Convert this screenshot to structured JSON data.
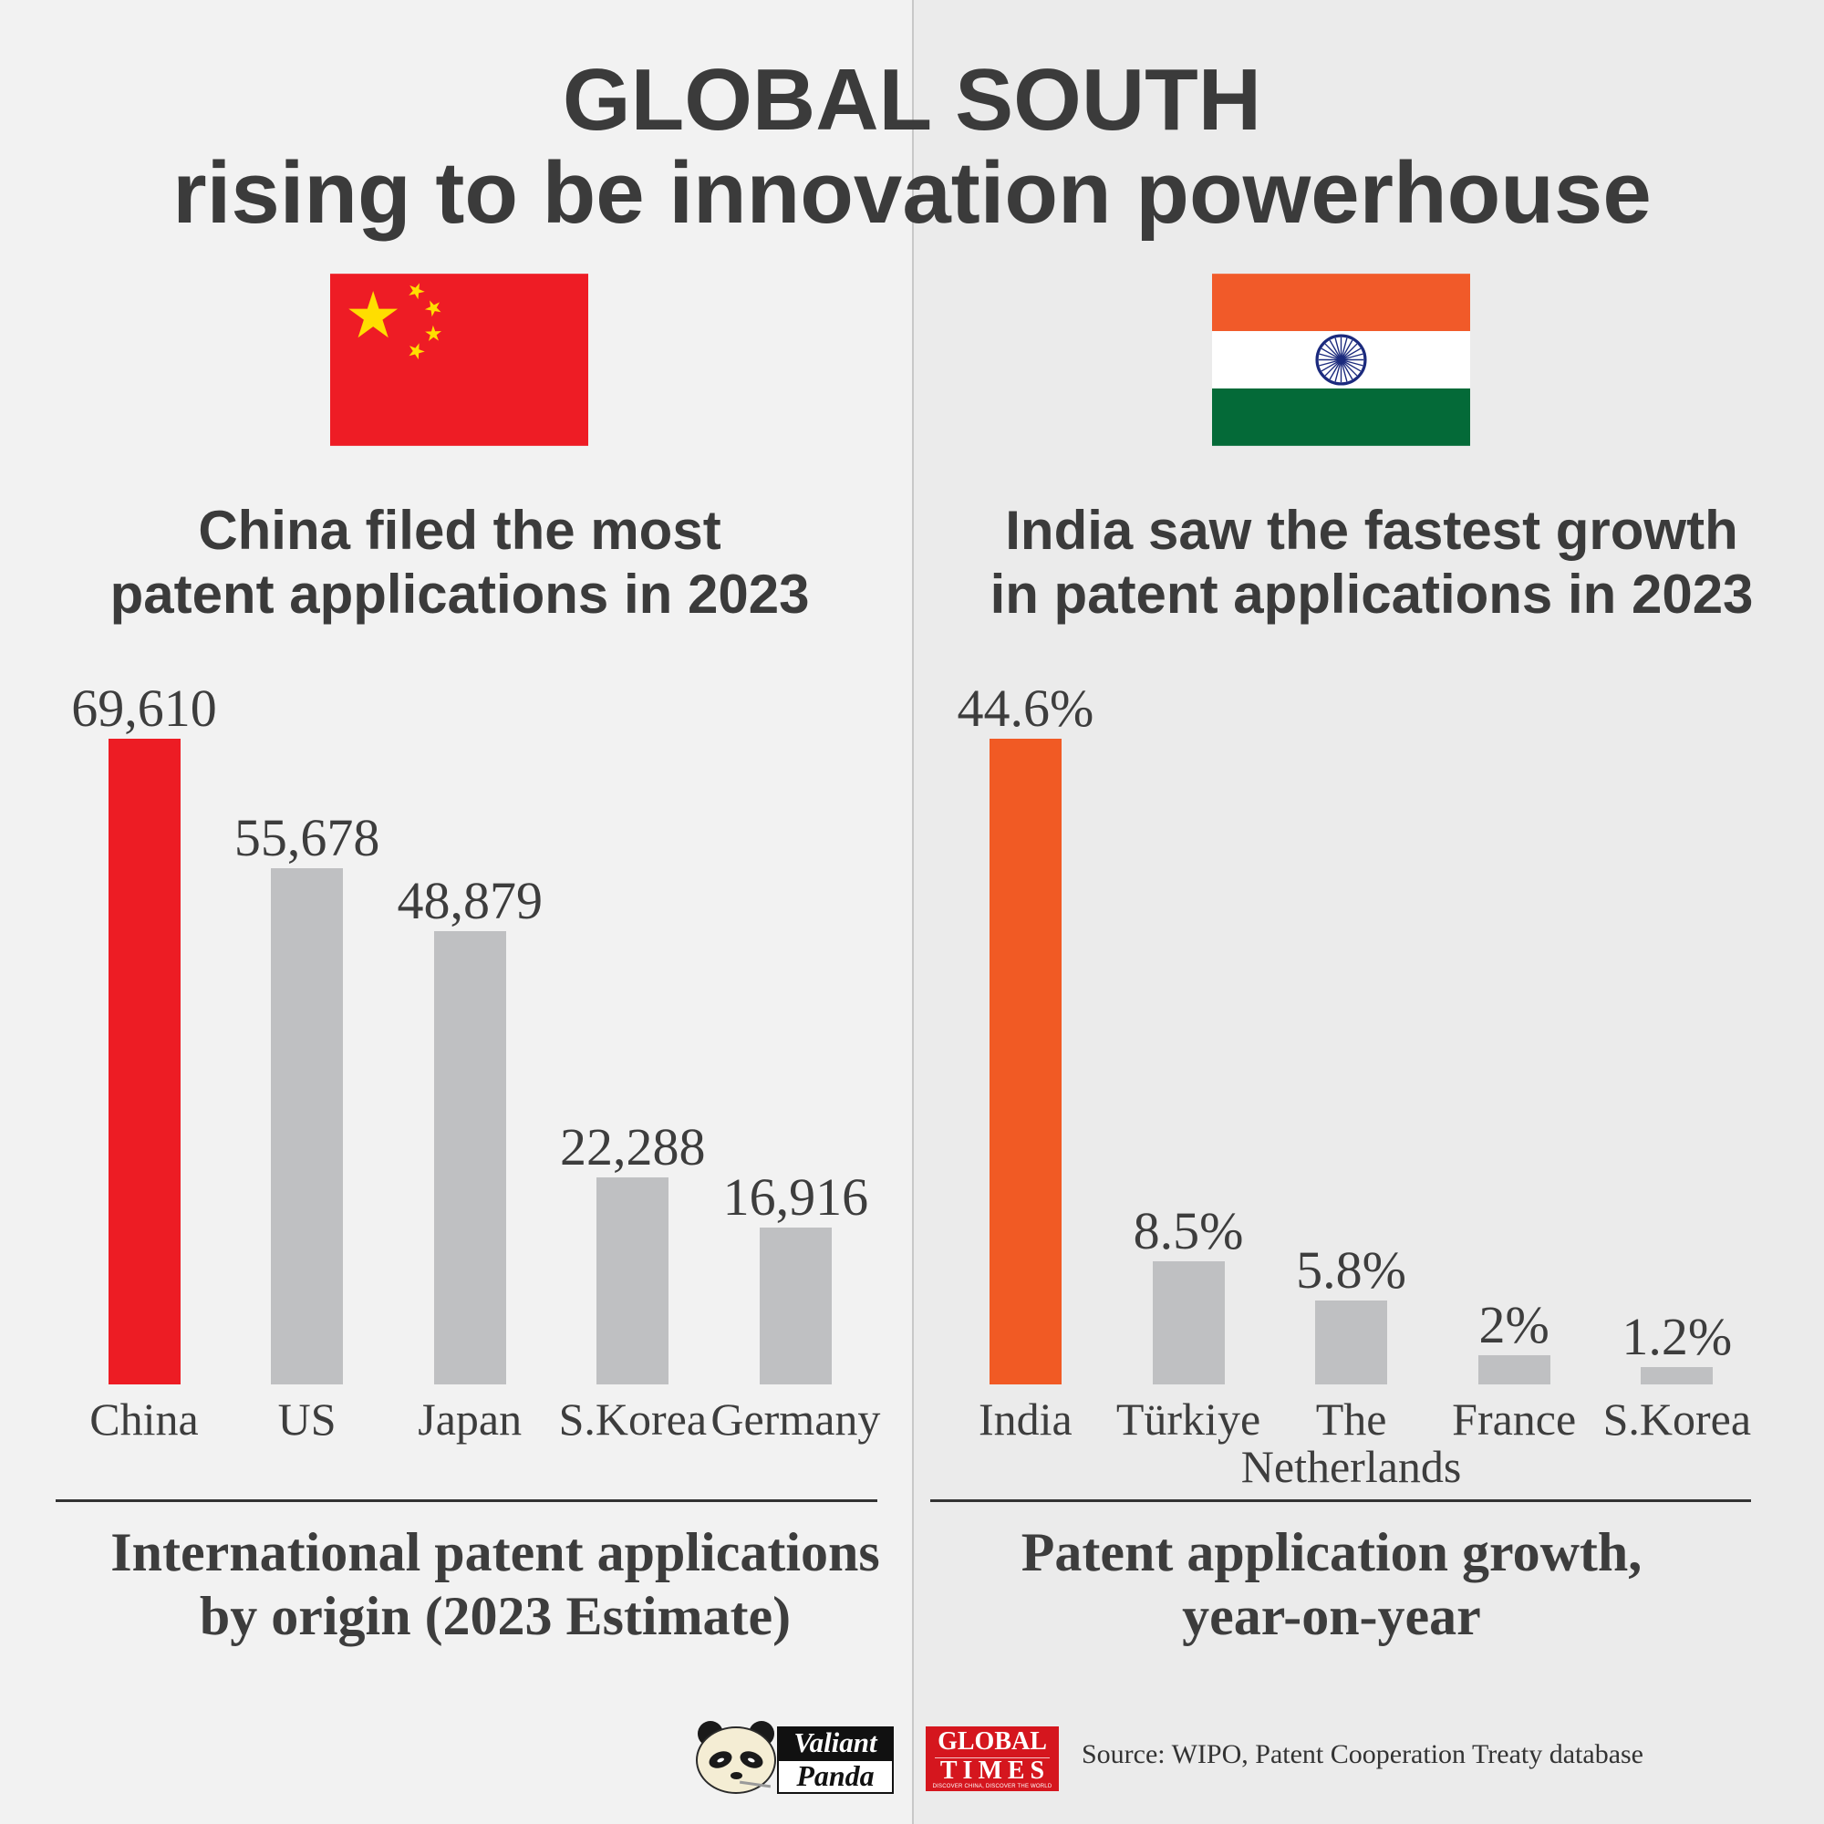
{
  "title": {
    "line1": "GLOBAL SOUTH",
    "line2": "rising to be innovation powerhouse"
  },
  "flags": {
    "left": "china-flag",
    "right": "india-flag"
  },
  "colors": {
    "left_bg": "#f2f2f2",
    "right_bg": "#ebebeb",
    "divider": "#c8c8c8",
    "title_text": "#3b3b3b",
    "china_red": "#ee1c25",
    "china_star": "#ffde00",
    "india_saffron": "#f15a29",
    "india_white": "#ffffff",
    "india_green": "#046a38",
    "chakra_navy": "#1b2a7d",
    "global_times_red": "#d5161e"
  },
  "chart_data": [
    {
      "type": "bar",
      "title_lines": [
        "China filed the most",
        "patent applications in 2023"
      ],
      "categories": [
        "China",
        "US",
        "Japan",
        "S.Korea",
        "Germany"
      ],
      "values": [
        69610,
        55678,
        48879,
        22288,
        16916
      ],
      "value_labels": [
        "69,610",
        "55,678",
        "48,879",
        "22,288",
        "16,916"
      ],
      "caption_lines": [
        "International patent applications",
        "by origin (2023 Estimate)"
      ],
      "ylim": [
        0,
        69610
      ],
      "grid": false,
      "highlight_index": 0,
      "highlight_color": "#ed1c24",
      "bar_color": "#bfc0c2"
    },
    {
      "type": "bar",
      "title_lines": [
        "India saw the fastest growth",
        "in patent applications in 2023"
      ],
      "categories": [
        "India",
        "Türkiye",
        "The Netherlands",
        "France",
        "S.Korea"
      ],
      "values": [
        44.6,
        8.5,
        5.8,
        2,
        1.2
      ],
      "value_labels": [
        "44.6%",
        "8.5%",
        "5.8%",
        "2%",
        "1.2%"
      ],
      "caption_lines": [
        "Patent application growth,",
        "year-on-year"
      ],
      "ylim": [
        0,
        44.6
      ],
      "grid": false,
      "highlight_index": 0,
      "highlight_color": "#f15a24",
      "bar_color": "#bfc0c2"
    }
  ],
  "footer": {
    "source": "Source: WIPO, Patent Cooperation Treaty database",
    "valiant_panda_logo": {
      "line1": "Valiant",
      "line2": "Panda"
    },
    "global_times_logo": {
      "line1": "GLOBAL",
      "line2": "TIMES",
      "tagline": "DISCOVER CHINA, DISCOVER THE WORLD"
    }
  }
}
